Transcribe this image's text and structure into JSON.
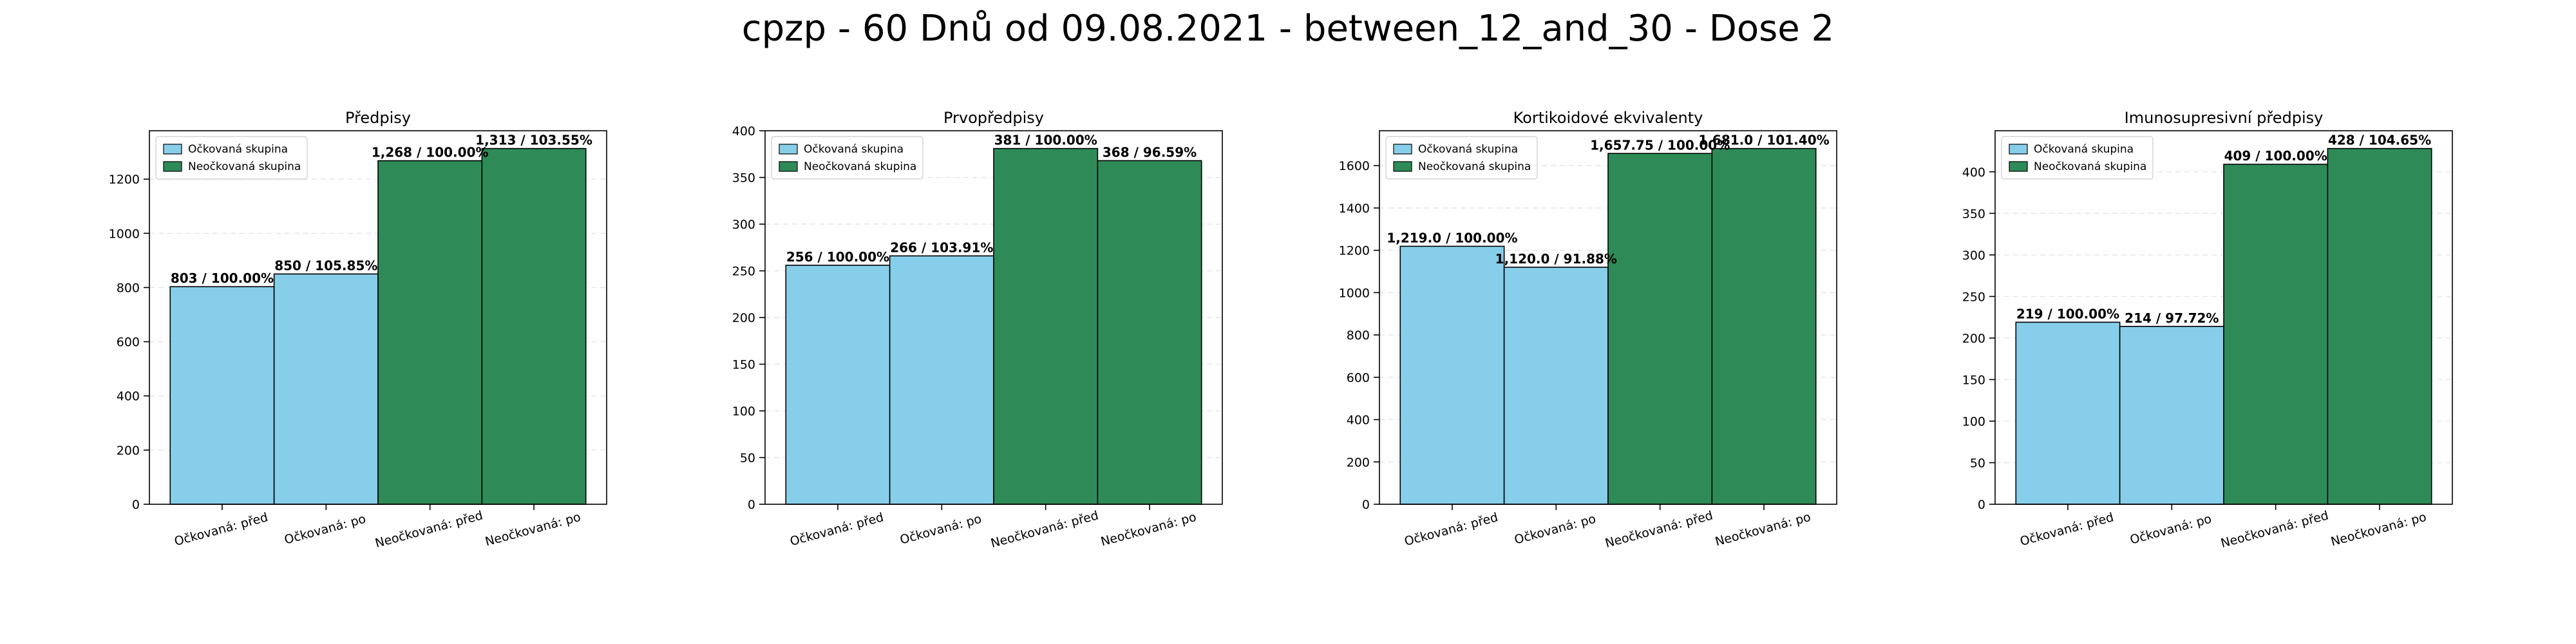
{
  "figure": {
    "suptitle": "cpzp - 60 Dnů od 09.08.2021 - between_12_and_30 - Dose 2"
  },
  "colors": {
    "vaccinated": "#87ceeb",
    "unvaccinated": "#2e8b57",
    "edge": "#000000",
    "grid": "#e6e6e6"
  },
  "chart_data": [
    {
      "type": "bar",
      "title": "Předpisy",
      "categories": [
        "Očkovaná: před",
        "Očkovaná: po",
        "Neočkovaná: před",
        "Neočkovaná: po"
      ],
      "values": [
        803,
        850,
        1268,
        1313
      ],
      "bar_labels": [
        "803 / 100.00%",
        "850 / 105.85%",
        "1,268 / 100.00%",
        "1,313 / 103.55%"
      ],
      "bar_groups": [
        "vaccinated",
        "vaccinated",
        "unvaccinated",
        "unvaccinated"
      ],
      "legend": [
        "Očkovaná skupina",
        "Neočkovaná skupina"
      ],
      "legend_position": "upper-left",
      "ylim": [
        0,
        1378.65
      ],
      "yticks": [
        0,
        200,
        400,
        600,
        800,
        1000,
        1200
      ],
      "grid": true
    },
    {
      "type": "bar",
      "title": "Prvopředpisy",
      "categories": [
        "Očkovaná: před",
        "Očkovaná: po",
        "Neočkovaná: před",
        "Neočkovaná: po"
      ],
      "values": [
        256,
        266,
        381,
        368
      ],
      "bar_labels": [
        "256 / 100.00%",
        "266 / 103.91%",
        "381 / 100.00%",
        "368 / 96.59%"
      ],
      "bar_groups": [
        "vaccinated",
        "vaccinated",
        "unvaccinated",
        "unvaccinated"
      ],
      "legend": [
        "Očkovaná skupina",
        "Neočkovaná skupina"
      ],
      "legend_position": "upper-left",
      "ylim": [
        0,
        400.05
      ],
      "yticks": [
        0,
        50,
        100,
        150,
        200,
        250,
        300,
        350,
        400
      ],
      "grid": true
    },
    {
      "type": "bar",
      "title": "Kortikoidové ekvivalenty",
      "categories": [
        "Očkovaná: před",
        "Očkovaná: po",
        "Neočkovaná: před",
        "Neočkovaná: po"
      ],
      "values": [
        1219.0,
        1120.0,
        1657.75,
        1681.0
      ],
      "bar_labels": [
        "1,219.0 / 100.00%",
        "1,120.0 / 91.88%",
        "1,657.75 / 100.00%",
        "1,681.0 / 101.40%"
      ],
      "bar_groups": [
        "vaccinated",
        "vaccinated",
        "unvaccinated",
        "unvaccinated"
      ],
      "legend": [
        "Očkovaná skupina",
        "Neočkovaná skupina"
      ],
      "legend_position": "upper-left",
      "ylim": [
        0,
        1765.05
      ],
      "yticks": [
        0,
        200,
        400,
        600,
        800,
        1000,
        1200,
        1400,
        1600
      ],
      "grid": true
    },
    {
      "type": "bar",
      "title": "Imunosupresivní předpisy",
      "categories": [
        "Očkovaná: před",
        "Očkovaná: po",
        "Neočkovaná: před",
        "Neočkovaná: po"
      ],
      "values": [
        219,
        214,
        409,
        428
      ],
      "bar_labels": [
        "219 / 100.00%",
        "214 / 97.72%",
        "409 / 100.00%",
        "428 / 104.65%"
      ],
      "bar_groups": [
        "vaccinated",
        "vaccinated",
        "unvaccinated",
        "unvaccinated"
      ],
      "legend": [
        "Očkovaná skupina",
        "Neočkovaná skupina"
      ],
      "legend_position": "upper-left",
      "ylim": [
        0,
        449.4
      ],
      "yticks": [
        0,
        50,
        100,
        150,
        200,
        250,
        300,
        350,
        400
      ],
      "grid": true
    }
  ]
}
